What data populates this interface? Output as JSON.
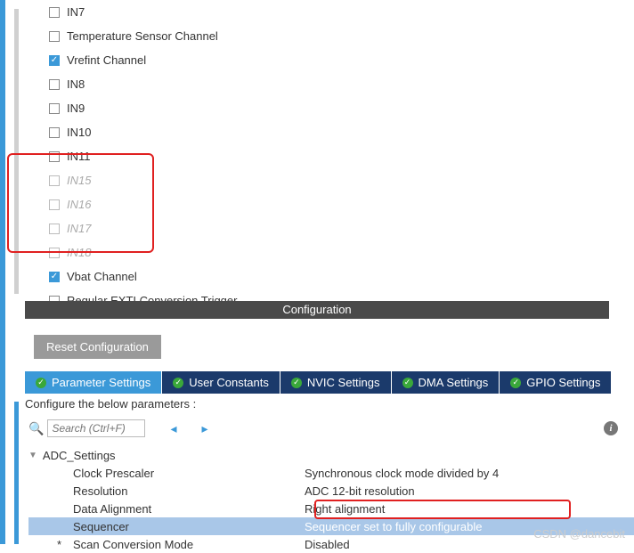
{
  "channels": [
    {
      "label": "IN7",
      "checked": false,
      "disabled": false
    },
    {
      "label": "Temperature Sensor Channel",
      "checked": false,
      "disabled": false
    },
    {
      "label": "Vrefint Channel",
      "checked": true,
      "disabled": false
    },
    {
      "label": "IN8",
      "checked": false,
      "disabled": false
    },
    {
      "label": "IN9",
      "checked": false,
      "disabled": false
    },
    {
      "label": "IN10",
      "checked": false,
      "disabled": false
    },
    {
      "label": "IN11",
      "checked": false,
      "disabled": false
    },
    {
      "label": "IN15",
      "checked": false,
      "disabled": true
    },
    {
      "label": "IN16",
      "checked": false,
      "disabled": true
    },
    {
      "label": "IN17",
      "checked": false,
      "disabled": true
    },
    {
      "label": "IN18",
      "checked": false,
      "disabled": true
    },
    {
      "label": "Vbat Channel",
      "checked": true,
      "disabled": false
    },
    {
      "label": "Regular EXTI Conversion Trigger",
      "checked": false,
      "disabled": false
    }
  ],
  "config_header": "Configuration",
  "reset_label": "Reset Configuration",
  "tabs": [
    {
      "label": "Parameter Settings",
      "active": true
    },
    {
      "label": "User Constants",
      "active": false
    },
    {
      "label": "NVIC Settings",
      "active": false
    },
    {
      "label": "DMA Settings",
      "active": false
    },
    {
      "label": "GPIO Settings",
      "active": false
    }
  ],
  "param_subhead": "Configure the below parameters :",
  "search_placeholder": "Search (Ctrl+F)",
  "tree_header": "ADC_Settings",
  "params": [
    {
      "label": "Clock Prescaler",
      "value": "Synchronous clock mode divided by 4",
      "selected": false,
      "star": ""
    },
    {
      "label": "Resolution",
      "value": "ADC 12-bit resolution",
      "selected": false,
      "star": ""
    },
    {
      "label": "Data Alignment",
      "value": "Right alignment",
      "selected": false,
      "star": ""
    },
    {
      "label": "Sequencer",
      "value": "Sequencer set to fully configurable",
      "selected": true,
      "star": ""
    },
    {
      "label": "Scan Conversion Mode",
      "value": "Disabled",
      "selected": false,
      "star": "*"
    }
  ],
  "watermark": "CSDN @dancebit",
  "colors": {
    "accent": "#3b99d8",
    "tab_bg": "#1b3a6b",
    "highlight_red": "#e02020",
    "row_selected": "#a9c7e8"
  }
}
